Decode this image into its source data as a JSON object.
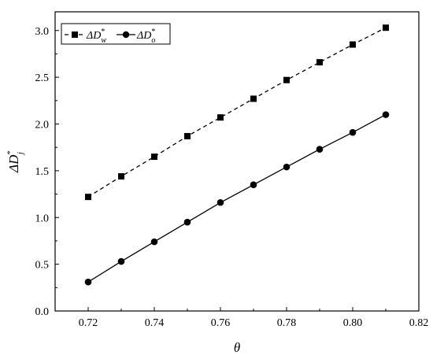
{
  "chart_data": {
    "type": "line",
    "x": [
      0.72,
      0.73,
      0.74,
      0.75,
      0.76,
      0.77,
      0.78,
      0.79,
      0.8,
      0.81
    ],
    "series": [
      {
        "name": "ΔD*_w",
        "values": [
          1.22,
          1.44,
          1.65,
          1.87,
          2.07,
          2.27,
          2.47,
          2.66,
          2.85,
          3.03
        ],
        "marker": "square",
        "line_style": "dashed",
        "color": "#000000"
      },
      {
        "name": "ΔD*_o",
        "values": [
          0.31,
          0.53,
          0.74,
          0.95,
          1.16,
          1.35,
          1.54,
          1.73,
          1.91,
          2.1
        ],
        "marker": "circle",
        "line_style": "solid",
        "color": "#000000"
      }
    ],
    "xlabel": "θ",
    "ylabel": "ΔD*_j",
    "xlim": [
      0.71,
      0.82
    ],
    "ylim": [
      0.0,
      3.2
    ],
    "xticks": [
      "0.72",
      "0.74",
      "0.76",
      "0.78",
      "0.80",
      "0.82"
    ],
    "yticks": [
      "0.0",
      "0.5",
      "1.0",
      "1.5",
      "2.0",
      "2.5",
      "3.0"
    ],
    "grid": false,
    "legend_position": "top-left"
  }
}
